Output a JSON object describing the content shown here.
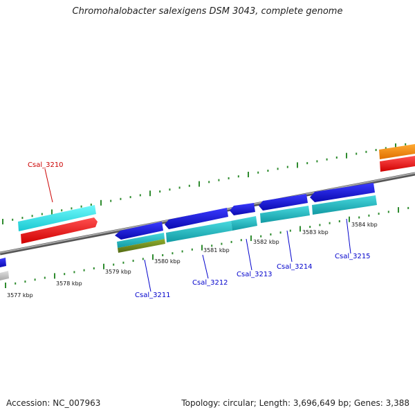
{
  "title": "Chromohalobacter salexigens DSM 3043, complete genome",
  "footer": {
    "accession": "Accession: NC_007963",
    "summary": "Topology: circular; Length: 3,696,649 bp; Genes: 3,388"
  },
  "colors": {
    "backbone": "#7a7a7a",
    "ticks": "#2e8b2e",
    "red": "#ff1a1a",
    "cyan_bright": "#33f0f5",
    "cyan_dark": "#1fc4cc",
    "blue": "#1414e6",
    "olive": "#6e8a1e",
    "orange": "#ff8c00",
    "grey": "#c8c8c8",
    "label_blue": "#0000cc",
    "label_red": "#cc0000"
  },
  "scale_labels": [
    "3577 kbp",
    "3578 kbp",
    "3579 kbp",
    "3580 kbp",
    "3581 kbp",
    "3582 kbp",
    "3583 kbp",
    "3584 kbp"
  ],
  "gene_labels": [
    "Csal_3210",
    "Csal_3211",
    "Csal_3212",
    "Csal_3213",
    "Csal_3214",
    "Csal_3215"
  ]
}
